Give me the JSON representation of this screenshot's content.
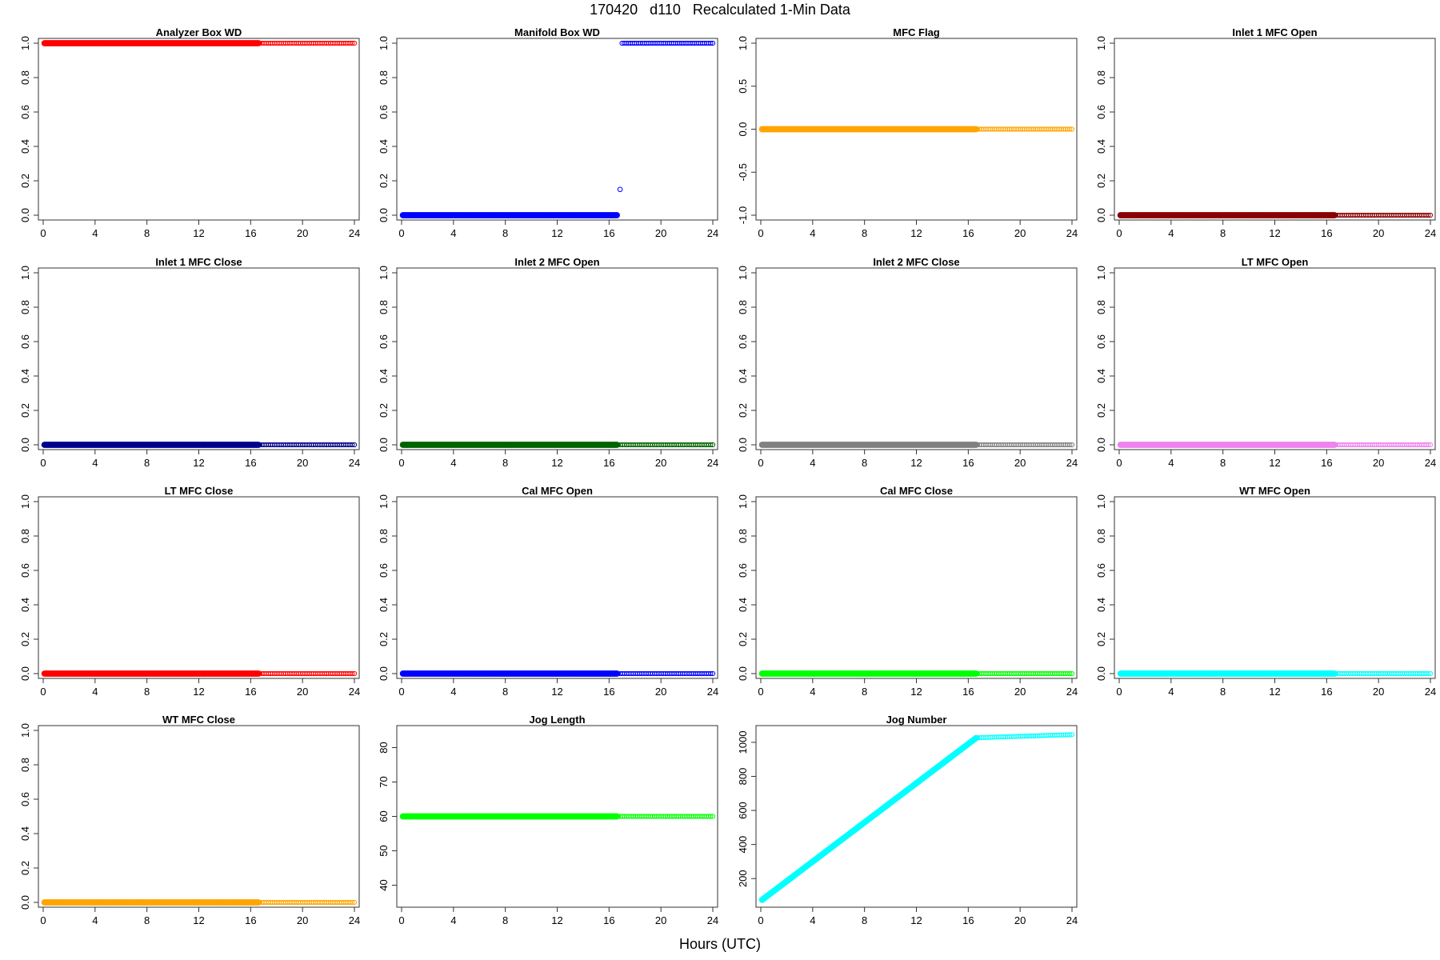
{
  "figure": {
    "title": "170420   d110   Recalculated 1-Min Data",
    "xlabel": "Hours (UTC)"
  },
  "chart_data": [
    {
      "type": "scatter",
      "title": "Analyzer Box WD",
      "xlim": [
        0,
        24
      ],
      "xticks": [
        "0",
        "4",
        "8",
        "12",
        "16",
        "20",
        "24"
      ],
      "ylim": [
        0,
        1
      ],
      "yticks": [
        "0.0",
        "0.2",
        "0.4",
        "0.6",
        "0.8",
        "1.0"
      ],
      "color": "#ff0000",
      "series": [
        {
          "style": "filled",
          "x": [
            0.1,
            16.6
          ],
          "y": [
            1,
            1
          ]
        },
        {
          "style": "open",
          "x": [
            16.7,
            24.0
          ],
          "y": [
            1,
            1
          ]
        }
      ]
    },
    {
      "type": "scatter",
      "title": "Manifold Box WD",
      "xlim": [
        0,
        24
      ],
      "xticks": [
        "0",
        "4",
        "8",
        "12",
        "16",
        "20",
        "24"
      ],
      "ylim": [
        0,
        1
      ],
      "yticks": [
        "0.0",
        "0.2",
        "0.4",
        "0.6",
        "0.8",
        "1.0"
      ],
      "color": "#0000ff",
      "series": [
        {
          "style": "filled",
          "x": [
            0.1,
            16.6
          ],
          "y": [
            0,
            0
          ]
        },
        {
          "style": "open",
          "x": [
            17.0,
            24.0
          ],
          "y": [
            1,
            1
          ]
        }
      ],
      "points": [
        {
          "x": 16.85,
          "y": 0.15
        }
      ]
    },
    {
      "type": "scatter",
      "title": "MFC Flag",
      "xlim": [
        0,
        24
      ],
      "xticks": [
        "0",
        "4",
        "8",
        "12",
        "16",
        "20",
        "24"
      ],
      "ylim": [
        -1,
        1
      ],
      "yticks": [
        "-1.0",
        "-0.5",
        "0.0",
        "0.5",
        "1.0"
      ],
      "color": "#ffa500",
      "series": [
        {
          "style": "filled",
          "x": [
            0.1,
            16.6
          ],
          "y": [
            0,
            0
          ]
        },
        {
          "style": "open",
          "x": [
            16.7,
            24.0
          ],
          "y": [
            0,
            0
          ]
        }
      ]
    },
    {
      "type": "scatter",
      "title": "Inlet 1 MFC Open",
      "xlim": [
        0,
        24
      ],
      "xticks": [
        "0",
        "4",
        "8",
        "12",
        "16",
        "20",
        "24"
      ],
      "ylim": [
        0,
        1
      ],
      "yticks": [
        "0.0",
        "0.2",
        "0.4",
        "0.6",
        "0.8",
        "1.0"
      ],
      "color": "#8b0000",
      "series": [
        {
          "style": "filled",
          "x": [
            0.1,
            16.6
          ],
          "y": [
            0,
            0
          ]
        },
        {
          "style": "open",
          "x": [
            16.7,
            24.0
          ],
          "y": [
            0,
            0
          ]
        }
      ]
    },
    {
      "type": "scatter",
      "title": "Inlet 1 MFC Close",
      "xlim": [
        0,
        24
      ],
      "xticks": [
        "0",
        "4",
        "8",
        "12",
        "16",
        "20",
        "24"
      ],
      "ylim": [
        0,
        1
      ],
      "yticks": [
        "0.0",
        "0.2",
        "0.4",
        "0.6",
        "0.8",
        "1.0"
      ],
      "color": "#00008b",
      "series": [
        {
          "style": "filled",
          "x": [
            0.1,
            16.6
          ],
          "y": [
            0,
            0
          ]
        },
        {
          "style": "open",
          "x": [
            16.7,
            24.0
          ],
          "y": [
            0,
            0
          ]
        }
      ]
    },
    {
      "type": "scatter",
      "title": "Inlet 2 MFC Open",
      "xlim": [
        0,
        24
      ],
      "xticks": [
        "0",
        "4",
        "8",
        "12",
        "16",
        "20",
        "24"
      ],
      "ylim": [
        0,
        1
      ],
      "yticks": [
        "0.0",
        "0.2",
        "0.4",
        "0.6",
        "0.8",
        "1.0"
      ],
      "color": "#006400",
      "series": [
        {
          "style": "filled",
          "x": [
            0.1,
            16.6
          ],
          "y": [
            0,
            0
          ]
        },
        {
          "style": "open",
          "x": [
            16.7,
            24.0
          ],
          "y": [
            0,
            0
          ]
        }
      ]
    },
    {
      "type": "scatter",
      "title": "Inlet 2 MFC Close",
      "xlim": [
        0,
        24
      ],
      "xticks": [
        "0",
        "4",
        "8",
        "12",
        "16",
        "20",
        "24"
      ],
      "ylim": [
        0,
        1
      ],
      "yticks": [
        "0.0",
        "0.2",
        "0.4",
        "0.6",
        "0.8",
        "1.0"
      ],
      "color": "#808080",
      "series": [
        {
          "style": "filled",
          "x": [
            0.1,
            16.6
          ],
          "y": [
            0,
            0
          ]
        },
        {
          "style": "open",
          "x": [
            16.7,
            24.0
          ],
          "y": [
            0,
            0
          ]
        }
      ]
    },
    {
      "type": "scatter",
      "title": "LT MFC Open",
      "xlim": [
        0,
        24
      ],
      "xticks": [
        "0",
        "4",
        "8",
        "12",
        "16",
        "20",
        "24"
      ],
      "ylim": [
        0,
        1
      ],
      "yticks": [
        "0.0",
        "0.2",
        "0.4",
        "0.6",
        "0.8",
        "1.0"
      ],
      "color": "#ee82ee",
      "series": [
        {
          "style": "filled",
          "x": [
            0.1,
            16.6
          ],
          "y": [
            0,
            0
          ]
        },
        {
          "style": "open",
          "x": [
            16.7,
            24.0
          ],
          "y": [
            0,
            0
          ]
        }
      ]
    },
    {
      "type": "scatter",
      "title": "LT MFC Close",
      "xlim": [
        0,
        24
      ],
      "xticks": [
        "0",
        "4",
        "8",
        "12",
        "16",
        "20",
        "24"
      ],
      "ylim": [
        0,
        1
      ],
      "yticks": [
        "0.0",
        "0.2",
        "0.4",
        "0.6",
        "0.8",
        "1.0"
      ],
      "color": "#ff0000",
      "series": [
        {
          "style": "filled",
          "x": [
            0.1,
            16.6
          ],
          "y": [
            0,
            0
          ]
        },
        {
          "style": "open",
          "x": [
            16.7,
            24.0
          ],
          "y": [
            0,
            0
          ]
        }
      ]
    },
    {
      "type": "scatter",
      "title": "Cal MFC Open",
      "xlim": [
        0,
        24
      ],
      "xticks": [
        "0",
        "4",
        "8",
        "12",
        "16",
        "20",
        "24"
      ],
      "ylim": [
        0,
        1
      ],
      "yticks": [
        "0.0",
        "0.2",
        "0.4",
        "0.6",
        "0.8",
        "1.0"
      ],
      "color": "#0000ff",
      "series": [
        {
          "style": "filled",
          "x": [
            0.1,
            16.6
          ],
          "y": [
            0,
            0
          ]
        },
        {
          "style": "open",
          "x": [
            16.7,
            24.0
          ],
          "y": [
            0,
            0
          ]
        }
      ]
    },
    {
      "type": "scatter",
      "title": "Cal MFC Close",
      "xlim": [
        0,
        24
      ],
      "xticks": [
        "0",
        "4",
        "8",
        "12",
        "16",
        "20",
        "24"
      ],
      "ylim": [
        0,
        1
      ],
      "yticks": [
        "0.0",
        "0.2",
        "0.4",
        "0.6",
        "0.8",
        "1.0"
      ],
      "color": "#00ff00",
      "series": [
        {
          "style": "filled",
          "x": [
            0.1,
            16.6
          ],
          "y": [
            0,
            0
          ]
        },
        {
          "style": "open",
          "x": [
            16.7,
            24.0
          ],
          "y": [
            0,
            0
          ]
        }
      ]
    },
    {
      "type": "scatter",
      "title": "WT MFC Open",
      "xlim": [
        0,
        24
      ],
      "xticks": [
        "0",
        "4",
        "8",
        "12",
        "16",
        "20",
        "24"
      ],
      "ylim": [
        0,
        1
      ],
      "yticks": [
        "0.0",
        "0.2",
        "0.4",
        "0.6",
        "0.8",
        "1.0"
      ],
      "color": "#00ffff",
      "series": [
        {
          "style": "filled",
          "x": [
            0.1,
            16.6
          ],
          "y": [
            0,
            0
          ]
        },
        {
          "style": "open",
          "x": [
            16.7,
            24.0
          ],
          "y": [
            0,
            0
          ]
        }
      ]
    },
    {
      "type": "scatter",
      "title": "WT MFC Close",
      "xlim": [
        0,
        24
      ],
      "xticks": [
        "0",
        "4",
        "8",
        "12",
        "16",
        "20",
        "24"
      ],
      "ylim": [
        0,
        1
      ],
      "yticks": [
        "0.0",
        "0.2",
        "0.4",
        "0.6",
        "0.8",
        "1.0"
      ],
      "color": "#ffa500",
      "series": [
        {
          "style": "filled",
          "x": [
            0.1,
            16.6
          ],
          "y": [
            0,
            0
          ]
        },
        {
          "style": "open",
          "x": [
            16.7,
            24.0
          ],
          "y": [
            0,
            0
          ]
        }
      ]
    },
    {
      "type": "scatter",
      "title": "Jog Length",
      "xlim": [
        0,
        24
      ],
      "xticks": [
        "0",
        "4",
        "8",
        "12",
        "16",
        "20",
        "24"
      ],
      "ylim": [
        35,
        85
      ],
      "yticks": [
        "40",
        "50",
        "60",
        "70",
        "80"
      ],
      "color": "#00ff00",
      "series": [
        {
          "style": "filled",
          "x": [
            0.1,
            16.6
          ],
          "y": [
            60,
            60
          ]
        },
        {
          "style": "open",
          "x": [
            16.7,
            24.0
          ],
          "y": [
            60,
            60
          ]
        }
      ]
    },
    {
      "type": "scatter",
      "title": "Jog Number",
      "xlim": [
        0,
        24
      ],
      "xticks": [
        "0",
        "4",
        "8",
        "12",
        "16",
        "20",
        "24"
      ],
      "ylim": [
        60,
        1070
      ],
      "yticks": [
        "200",
        "400",
        "600",
        "800",
        "1000"
      ],
      "color": "#00ffff",
      "series": [
        {
          "style": "filled",
          "x": [
            0.1,
            16.6
          ],
          "y": [
            75,
            1025
          ]
        },
        {
          "style": "open",
          "x": [
            16.7,
            24.0
          ],
          "y": [
            1027,
            1045
          ]
        }
      ]
    }
  ]
}
